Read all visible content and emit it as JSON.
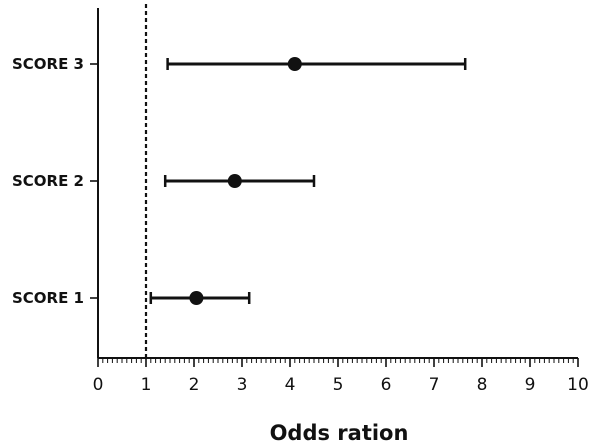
{
  "chart_data": {
    "type": "forest",
    "title": "",
    "xlabel": "Odds ration",
    "ylabel": "",
    "xlim": [
      0,
      10
    ],
    "x_ticks": [
      0,
      1,
      2,
      3,
      4,
      5,
      6,
      7,
      8,
      9,
      10
    ],
    "x_tick_labels": [
      "0",
      "1",
      "2",
      "3",
      "4",
      "5",
      "6",
      "7",
      "8",
      "9",
      "10"
    ],
    "reference_line": 1,
    "grid": false,
    "categories": [
      "SCORE 3",
      "SCORE 2",
      "SCORE 1"
    ],
    "points": [
      {
        "label": "SCORE 3",
        "estimate": 4.1,
        "lower": 1.45,
        "upper": 7.65
      },
      {
        "label": "SCORE 2",
        "estimate": 2.85,
        "lower": 1.4,
        "upper": 4.5
      },
      {
        "label": "SCORE 1",
        "estimate": 2.05,
        "lower": 1.1,
        "upper": 3.15
      }
    ],
    "colors": {
      "marks": "#111111",
      "reference": "#111111"
    }
  }
}
